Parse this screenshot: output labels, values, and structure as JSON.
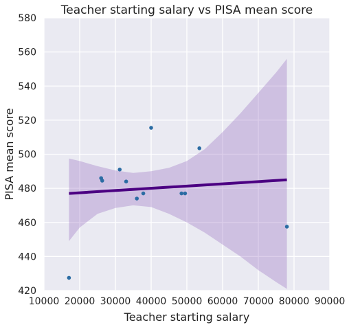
{
  "chart_data": {
    "type": "scatter",
    "title": "Teacher starting salary vs PISA mean score",
    "xlabel": "Teacher starting salary",
    "ylabel": "PISA mean score",
    "xlim": [
      10000,
      90000
    ],
    "ylim": [
      420,
      580
    ],
    "xticks": [
      10000,
      20000,
      30000,
      40000,
      50000,
      60000,
      70000,
      80000,
      90000
    ],
    "yticks": [
      420,
      440,
      460,
      480,
      500,
      520,
      540,
      560,
      580
    ],
    "grid": true,
    "points": [
      {
        "x": 17000,
        "y": 427.5
      },
      {
        "x": 26000,
        "y": 486
      },
      {
        "x": 26300,
        "y": 484.5
      },
      {
        "x": 31200,
        "y": 491
      },
      {
        "x": 33000,
        "y": 484
      },
      {
        "x": 36000,
        "y": 474
      },
      {
        "x": 37800,
        "y": 477
      },
      {
        "x": 40000,
        "y": 515.5
      },
      {
        "x": 48500,
        "y": 477
      },
      {
        "x": 49500,
        "y": 477
      },
      {
        "x": 53500,
        "y": 503.5
      },
      {
        "x": 78000,
        "y": 457.5
      }
    ],
    "regression": {
      "x": [
        17000,
        78000
      ],
      "y": [
        477,
        485
      ]
    },
    "confidence_band": {
      "x": [
        17000,
        20000,
        25000,
        30000,
        35000,
        40000,
        45000,
        50000,
        55000,
        60000,
        65000,
        70000,
        75000,
        78000
      ],
      "upper": [
        497.5,
        496,
        493,
        490.5,
        489,
        490,
        492,
        496,
        503,
        513,
        524,
        536,
        548,
        556
      ],
      "lower": [
        449,
        457,
        465,
        468.5,
        470,
        469,
        465,
        460,
        454,
        447,
        440,
        432,
        425,
        421
      ]
    },
    "colors": {
      "background": "#eaeaf2",
      "grid": "#ffffff",
      "points": "#2b6ca3",
      "line": "#4b0082",
      "band": "#9b72c3"
    }
  }
}
